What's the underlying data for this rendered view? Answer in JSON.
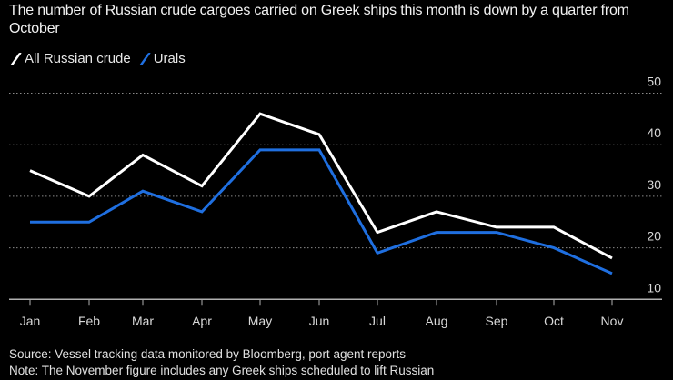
{
  "chart_data": {
    "type": "line",
    "title": "The number of Russian crude cargoes carried on Greek ships this month is down by a quarter from October",
    "categories": [
      "Jan",
      "Feb",
      "Mar",
      "Apr",
      "May",
      "Jun",
      "Jul",
      "Aug",
      "Sep",
      "Oct",
      "Nov"
    ],
    "series": [
      {
        "name": "All Russian crude",
        "color": "#ffffff",
        "values": [
          35,
          30,
          38,
          32,
          46,
          42,
          23,
          27,
          24,
          24,
          18
        ]
      },
      {
        "name": "Urals",
        "color": "#1f6fe0",
        "values": [
          25,
          25,
          31,
          27,
          39,
          39,
          19,
          23,
          23,
          20,
          15
        ]
      }
    ],
    "yticks": [
      10,
      20,
      30,
      40,
      50
    ],
    "ylim": [
      10,
      50
    ],
    "grid": true,
    "yaxis_side": "right",
    "legend_placement": "top-left",
    "source": "Source: Vessel tracking data monitored by Bloomberg, port agent reports",
    "note": "Note: The November figure includes any Greek ships scheduled to lift Russian"
  }
}
